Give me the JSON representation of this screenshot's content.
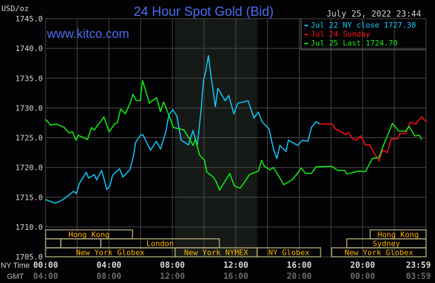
{
  "header": {
    "title": "24 Hour Spot Gold (Bid)",
    "website": "www.kitco.com",
    "timestamp": "July 25, 2022 23:44",
    "unit": "USD/oz"
  },
  "colors": {
    "title": "#4a6cf0",
    "blue_series": "#10c8f8",
    "red_series": "#ff1010",
    "green_series": "#10f010",
    "session_border": "#a8a070",
    "session_text": "#ffb400",
    "highlight": "#161a16",
    "grid": "#4a4a4a"
  },
  "chart_data": {
    "type": "line",
    "title": "24 Hour Spot Gold (Bid)",
    "ylabel": "USD/oz",
    "ylim": [
      1705,
      1745
    ],
    "xlim_hours": [
      0,
      24
    ],
    "grid": true,
    "legend_position": "top-right",
    "y_ticks": [
      "1745.0",
      "1740.0",
      "1735.0",
      "1730.0",
      "1725.0",
      "1720.0",
      "1715.0",
      "1710.0",
      "1705.0"
    ],
    "x_axis_rows": [
      {
        "label": "NY Time",
        "ticks": [
          "00:00",
          "04:00",
          "08:00",
          "12:00",
          "16:00",
          "20:00",
          "23:59"
        ]
      },
      {
        "label": "GMT",
        "ticks": [
          "04:00",
          "08:00",
          "12:00",
          "16:00",
          "20:00",
          "00:00",
          "03:59"
        ]
      }
    ],
    "highlight_hours": [
      8.17,
      13.35
    ],
    "series": [
      {
        "name": "Jul 22 NY close 1727.30",
        "color": "#10c8f8",
        "points": [
          [
            0,
            1714.6
          ],
          [
            0.6,
            1714.0
          ],
          [
            1.1,
            1714.6
          ],
          [
            1.77,
            1716.0
          ],
          [
            1.94,
            1715.6
          ],
          [
            2.13,
            1717.3
          ],
          [
            2.57,
            1719.2
          ],
          [
            2.71,
            1718.2
          ],
          [
            3.07,
            1718.8
          ],
          [
            3.22,
            1717.9
          ],
          [
            3.54,
            1719.5
          ],
          [
            3.87,
            1716.3
          ],
          [
            4.06,
            1716.9
          ],
          [
            4.23,
            1718.7
          ],
          [
            4.67,
            1719.8
          ],
          [
            4.88,
            1718.4
          ],
          [
            5.32,
            1719.6
          ],
          [
            5.54,
            1721.9
          ],
          [
            5.68,
            1724.2
          ],
          [
            5.97,
            1725.4
          ],
          [
            6.14,
            1725.5
          ],
          [
            6.62,
            1722.9
          ],
          [
            6.99,
            1724.4
          ],
          [
            7.25,
            1723.1
          ],
          [
            7.57,
            1725.8
          ],
          [
            7.78,
            1728.8
          ],
          [
            8.03,
            1729.7
          ],
          [
            8.29,
            1728.6
          ],
          [
            8.55,
            1724.6
          ],
          [
            9.01,
            1723.8
          ],
          [
            9.3,
            1726.2
          ],
          [
            9.57,
            1723.7
          ],
          [
            9.81,
            1729.6
          ],
          [
            9.96,
            1734.6
          ],
          [
            10.1,
            1736.2
          ],
          [
            10.27,
            1738.8
          ],
          [
            10.46,
            1735.0
          ],
          [
            10.71,
            1730.2
          ],
          [
            10.87,
            1733.3
          ],
          [
            11.33,
            1731.2
          ],
          [
            11.55,
            1732.1
          ],
          [
            11.88,
            1729.0
          ],
          [
            12.13,
            1730.8
          ],
          [
            12.78,
            1731.2
          ],
          [
            13.14,
            1728.3
          ],
          [
            13.43,
            1729.3
          ],
          [
            13.65,
            1727.7
          ],
          [
            14.09,
            1726.5
          ],
          [
            14.38,
            1723.1
          ],
          [
            14.59,
            1721.5
          ],
          [
            14.78,
            1723.7
          ],
          [
            15.17,
            1722.7
          ],
          [
            15.32,
            1724.6
          ],
          [
            15.9,
            1723.7
          ],
          [
            16.19,
            1724.6
          ],
          [
            16.55,
            1724.4
          ],
          [
            16.77,
            1726.7
          ],
          [
            17.06,
            1727.7
          ],
          [
            17.3,
            1727.3
          ]
        ]
      },
      {
        "name": "Jul 24 Sunday",
        "color": "#ff1010",
        "points": [
          [
            17.3,
            1727.3
          ],
          [
            18.06,
            1727.3
          ],
          [
            18.29,
            1726.5
          ],
          [
            18.58,
            1726.1
          ],
          [
            18.94,
            1725.5
          ],
          [
            19.09,
            1725.9
          ],
          [
            19.38,
            1724.8
          ],
          [
            19.59,
            1724.6
          ],
          [
            19.88,
            1725.3
          ],
          [
            20.17,
            1723.8
          ],
          [
            20.46,
            1723.8
          ],
          [
            20.83,
            1721.9
          ],
          [
            21.04,
            1721.1
          ],
          [
            21.26,
            1722.9
          ],
          [
            21.55,
            1722.5
          ],
          [
            21.8,
            1724.8
          ],
          [
            22.2,
            1724.8
          ],
          [
            22.35,
            1725.7
          ],
          [
            22.71,
            1725.7
          ],
          [
            23.0,
            1727.6
          ],
          [
            23.36,
            1727.3
          ],
          [
            23.51,
            1727.9
          ],
          [
            23.73,
            1728.5
          ],
          [
            24.0,
            1727.7
          ]
        ]
      },
      {
        "name": "Jul 25 Last 1724.70",
        "color": "#10f010",
        "points": [
          [
            0,
            1728.1
          ],
          [
            0.32,
            1727.1
          ],
          [
            0.68,
            1727.3
          ],
          [
            1.19,
            1726.7
          ],
          [
            1.48,
            1725.8
          ],
          [
            1.7,
            1726.0
          ],
          [
            1.91,
            1724.6
          ],
          [
            2.06,
            1725.4
          ],
          [
            2.64,
            1724.7
          ],
          [
            2.9,
            1726.7
          ],
          [
            3.07,
            1726.3
          ],
          [
            3.29,
            1727.1
          ],
          [
            3.48,
            1727.7
          ],
          [
            3.68,
            1728.5
          ],
          [
            4.01,
            1726.0
          ],
          [
            4.35,
            1727.3
          ],
          [
            4.52,
            1727.5
          ],
          [
            4.74,
            1729.8
          ],
          [
            5.03,
            1729.0
          ],
          [
            5.36,
            1731.0
          ],
          [
            5.51,
            1732.3
          ],
          [
            5.71,
            1731.3
          ],
          [
            5.97,
            1731.2
          ],
          [
            6.12,
            1734.6
          ],
          [
            6.55,
            1730.8
          ],
          [
            6.77,
            1731.3
          ],
          [
            7.01,
            1731.7
          ],
          [
            7.25,
            1729.4
          ],
          [
            7.45,
            1731.0
          ],
          [
            7.78,
            1728.8
          ],
          [
            8.07,
            1726.7
          ],
          [
            8.43,
            1726.5
          ],
          [
            8.72,
            1726.3
          ],
          [
            9.01,
            1725.1
          ],
          [
            9.3,
            1723.7
          ],
          [
            9.45,
            1724.8
          ],
          [
            9.71,
            1722.1
          ],
          [
            10.03,
            1721.2
          ],
          [
            10.17,
            1719.2
          ],
          [
            10.54,
            1718.5
          ],
          [
            10.75,
            1717.7
          ],
          [
            10.97,
            1716.2
          ],
          [
            11.62,
            1719.0
          ],
          [
            11.91,
            1716.9
          ],
          [
            12.28,
            1716.5
          ],
          [
            12.64,
            1717.9
          ],
          [
            12.86,
            1718.8
          ],
          [
            13.43,
            1719.4
          ],
          [
            13.62,
            1721.2
          ],
          [
            13.8,
            1720.2
          ],
          [
            14.16,
            1719.6
          ],
          [
            14.38,
            1720.0
          ],
          [
            15.03,
            1717.1
          ],
          [
            15.54,
            1717.9
          ],
          [
            15.83,
            1718.8
          ],
          [
            16.12,
            1719.9
          ],
          [
            16.41,
            1719.0
          ],
          [
            16.77,
            1719.0
          ],
          [
            17.06,
            1720.1
          ],
          [
            18.06,
            1720.2
          ],
          [
            18.43,
            1719.5
          ],
          [
            18.87,
            1719.5
          ],
          [
            19.01,
            1718.9
          ],
          [
            19.74,
            1719.4
          ],
          [
            20.17,
            1719.3
          ],
          [
            20.61,
            1721.5
          ],
          [
            21.04,
            1721.7
          ],
          [
            21.26,
            1723.4
          ],
          [
            21.62,
            1725.7
          ],
          [
            21.88,
            1727.4
          ],
          [
            22.28,
            1726.1
          ],
          [
            22.71,
            1726.1
          ],
          [
            22.93,
            1726.9
          ],
          [
            23.29,
            1725.3
          ],
          [
            23.58,
            1725.4
          ],
          [
            23.73,
            1724.7
          ]
        ]
      }
    ],
    "sessions": [
      {
        "row": 0,
        "label": "Hong Kong",
        "start": 0,
        "end": 5.48
      },
      {
        "row": 0,
        "label": "Hong Kong",
        "start": 20.48,
        "end": 24
      },
      {
        "row": 1,
        "label": "",
        "start": 0,
        "end": 0.96
      },
      {
        "row": 1,
        "label": "",
        "start": 0.96,
        "end": 3.48
      },
      {
        "row": 1,
        "label": "London",
        "start": 3.48,
        "end": 10.96
      },
      {
        "row": 1,
        "label": "Sydney",
        "start": 19.0,
        "end": 24
      },
      {
        "row": 2,
        "label": "New York Globex",
        "start": 0,
        "end": 8.17
      },
      {
        "row": 2,
        "label": "New York NYMEX",
        "start": 8.17,
        "end": 13.35
      },
      {
        "row": 2,
        "label": "NY Globex",
        "start": 13.35,
        "end": 17.35
      },
      {
        "row": 2,
        "label": "New York Globex",
        "start": 18.05,
        "end": 24
      }
    ]
  }
}
